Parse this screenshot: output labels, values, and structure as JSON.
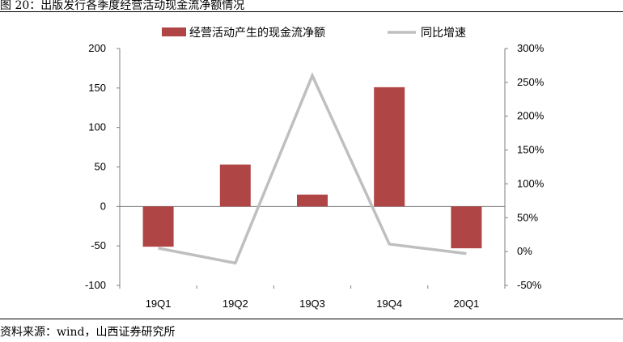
{
  "figure": {
    "title": "图 20：出版发行各季度经营活动现金流净额情况",
    "source": "资料来源：wind，山西证券研究所"
  },
  "chart_data": {
    "type": "bar",
    "categories": [
      "19Q1",
      "19Q2",
      "19Q3",
      "19Q4",
      "20Q1"
    ],
    "series": [
      {
        "name": "经营活动产生的现金流净额",
        "type": "bar",
        "axis": "left",
        "color": "#b04545",
        "values": [
          -51,
          53,
          15,
          151,
          -53
        ]
      },
      {
        "name": "同比增速",
        "type": "line",
        "axis": "right",
        "color": "#bfbfbf",
        "values": [
          0.05,
          -0.17,
          2.6,
          0.11,
          -0.03
        ]
      }
    ],
    "y_left": {
      "min": -100,
      "max": 200,
      "ticks": [
        -100,
        -50,
        0,
        50,
        100,
        150,
        200
      ],
      "tick_labels": [
        "-100",
        "-50",
        "0",
        "50",
        "100",
        "150",
        "200"
      ]
    },
    "y_right": {
      "min": -0.5,
      "max": 3.0,
      "ticks": [
        -0.5,
        0,
        0.5,
        1.0,
        1.5,
        2.0,
        2.5,
        3.0
      ],
      "tick_labels": [
        "-50%",
        "0%",
        "50%",
        "100%",
        "150%",
        "200%",
        "250%",
        "300%"
      ]
    },
    "grid": false,
    "legend": "top-center"
  }
}
